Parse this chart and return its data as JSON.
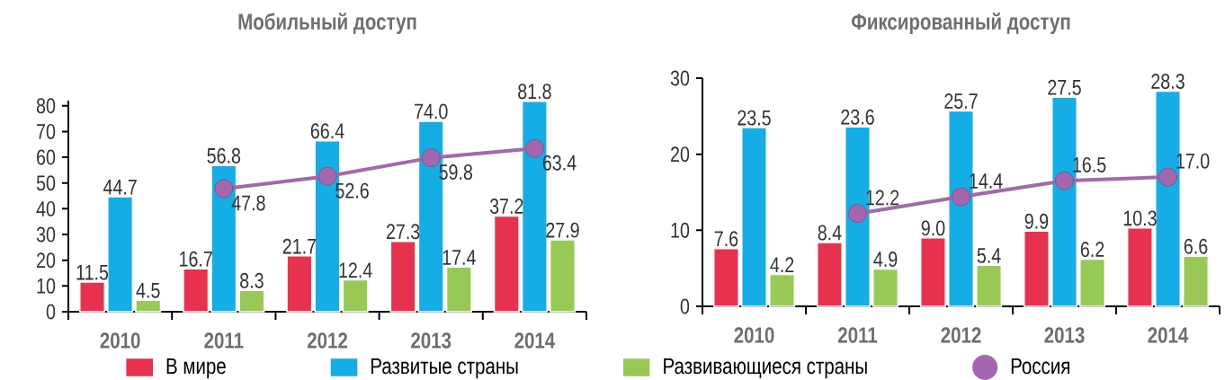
{
  "chart_data": [
    {
      "type": "bar",
      "title": "Мобильный доступ",
      "categories": [
        "2010",
        "2011",
        "2012",
        "2013",
        "2014"
      ],
      "series": [
        {
          "name": "В мире",
          "color": "#e8304f",
          "values": [
            11.5,
            16.7,
            21.7,
            27.3,
            37.2
          ],
          "value_labels": [
            "11.5",
            "16.7",
            "21.7",
            "27.3",
            "37.2"
          ]
        },
        {
          "name": "Развитые страны",
          "color": "#14ade6",
          "values": [
            44.7,
            56.8,
            66.4,
            74.0,
            81.8
          ],
          "value_labels": [
            "44.7",
            "56.8",
            "66.4",
            "74.0",
            "81.8"
          ]
        },
        {
          "name": "Развивающиеся страны",
          "color": "#97c954",
          "values": [
            4.5,
            8.3,
            12.4,
            17.4,
            27.9
          ],
          "value_labels": [
            "4.5",
            "8.3",
            "12.4",
            "17.4",
            "27.9"
          ]
        },
        {
          "name": "Россия",
          "type": "line",
          "color": "#a466ac",
          "marker": "circle",
          "values": [
            null,
            47.8,
            52.6,
            59.8,
            63.4
          ],
          "value_labels": [
            null,
            "47.8",
            "52.6",
            "59.8",
            "63.4"
          ]
        }
      ],
      "ylim": [
        0,
        82
      ],
      "yticks": [
        0,
        10,
        20,
        30,
        40,
        50,
        60,
        70,
        80
      ],
      "legend": "bottom"
    },
    {
      "type": "bar",
      "title": "Фиксированный доступ",
      "categories": [
        "2010",
        "2011",
        "2012",
        "2013",
        "2014"
      ],
      "series": [
        {
          "color": "#e8304f",
          "values": [
            7.6,
            8.4,
            9.0,
            9.9,
            10.3
          ],
          "value_labels": [
            "7.6",
            "8.4",
            "9.0",
            "9.9",
            "10.3"
          ]
        },
        {
          "color": "#14ade6",
          "values": [
            23.5,
            23.6,
            25.7,
            27.5,
            28.3
          ],
          "value_labels": [
            "23.5",
            "23.6",
            "25.7",
            "27.5",
            "28.3"
          ]
        },
        {
          "color": "#97c954",
          "values": [
            4.2,
            4.9,
            5.4,
            6.2,
            6.6
          ],
          "value_labels": [
            "4.2",
            "4.9",
            "5.4",
            "6.2",
            "6.6"
          ]
        },
        {
          "type": "line",
          "color": "#a466ac",
          "marker": "circle",
          "values": [
            null,
            12.2,
            14.4,
            16.5,
            17.0
          ],
          "value_labels": [
            null,
            "12.2",
            "14.4",
            "16.5",
            "17.0"
          ]
        }
      ],
      "ylim": [
        0,
        30
      ],
      "yticks": [
        0,
        10,
        20,
        30
      ]
    }
  ]
}
